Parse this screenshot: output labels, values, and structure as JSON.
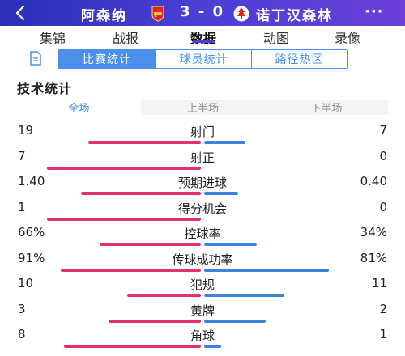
{
  "header": {
    "home_team": "阿森纳",
    "score": "3 - 0",
    "away_team": "诺丁汉森林",
    "more": "···"
  },
  "tabs": [
    {
      "label": "集锦",
      "active": false
    },
    {
      "label": "战报",
      "active": false
    },
    {
      "label": "数据",
      "active": true
    },
    {
      "label": "动图",
      "active": false
    },
    {
      "label": "录像",
      "active": false
    }
  ],
  "segments": [
    {
      "label": "比赛统计",
      "active": true
    },
    {
      "label": "球员统计",
      "active": false
    },
    {
      "label": "路径热区",
      "active": false
    }
  ],
  "section_title": "技术统计",
  "periods": [
    {
      "label": "全场",
      "active": true
    },
    {
      "label": "上半场",
      "active": false
    },
    {
      "label": "下半场",
      "active": false
    }
  ],
  "stats": [
    {
      "label": "射门",
      "home": "19",
      "away": "7",
      "home_share": 0.73,
      "away_share": 0.27
    },
    {
      "label": "射正",
      "home": "7",
      "away": "0",
      "home_share": 1.0,
      "away_share": 0.0
    },
    {
      "label": "预期进球",
      "home": "1.40",
      "away": "0.40",
      "home_share": 0.78,
      "away_share": 0.22
    },
    {
      "label": "得分机会",
      "home": "1",
      "away": "0",
      "home_share": 1.0,
      "away_share": 0.0
    },
    {
      "label": "控球率",
      "home": "66%",
      "away": "34%",
      "home_share": 0.66,
      "away_share": 0.34
    },
    {
      "label": "传球成功率",
      "home": "91%",
      "away": "81%",
      "home_share": 0.91,
      "away_share": 0.81
    },
    {
      "label": "犯规",
      "home": "10",
      "away": "11",
      "home_share": 0.48,
      "away_share": 0.52
    },
    {
      "label": "黄牌",
      "home": "3",
      "away": "2",
      "home_share": 0.6,
      "away_share": 0.4
    },
    {
      "label": "角球",
      "home": "8",
      "away": "1",
      "home_share": 0.89,
      "away_share": 0.11
    }
  ],
  "colors": {
    "header_start": "#2b2fb8",
    "header_end": "#6b3fd8",
    "accent_blue": "#4a8fea",
    "home_bar": "#e5316a",
    "away_bar": "#3a84e0"
  }
}
